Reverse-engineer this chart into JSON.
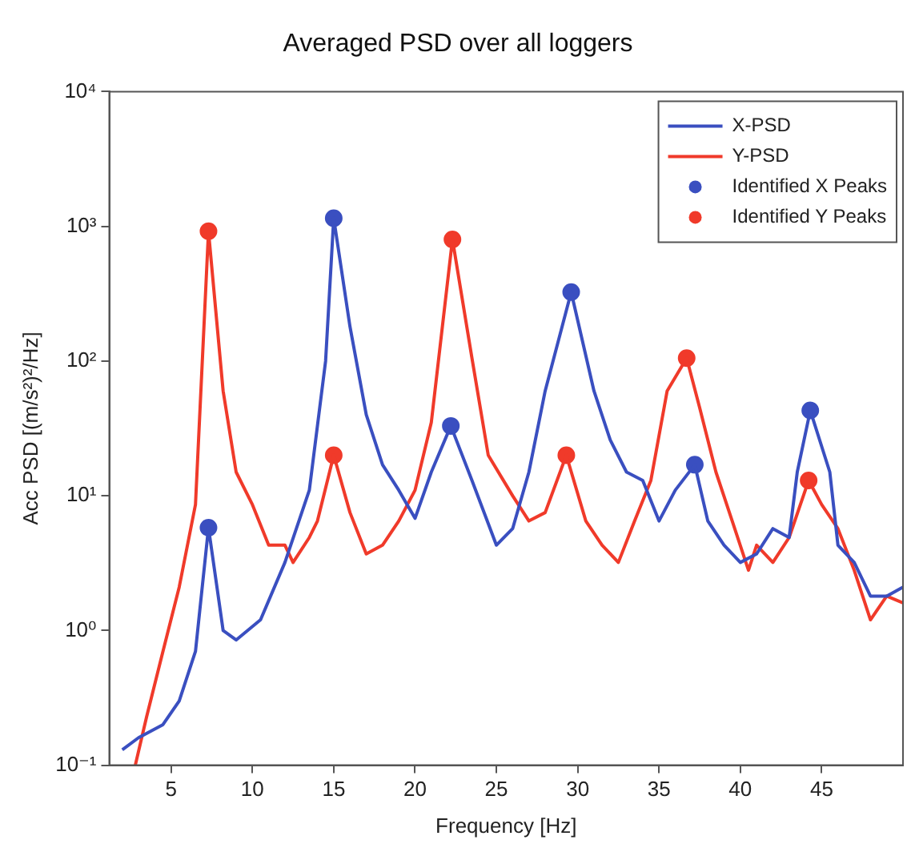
{
  "chart_data": {
    "type": "line",
    "title": "Averaged PSD over all loggers",
    "xlabel": "Frequency [Hz]",
    "ylabel": "Acc PSD [(m/s²)²/Hz]",
    "xlim": [
      1.2,
      50
    ],
    "xticks": [
      5,
      10,
      15,
      20,
      25,
      30,
      35,
      40,
      45
    ],
    "ylim": [
      0.1,
      10000
    ],
    "yticks": [
      {
        "value": 0.1,
        "label": "10⁻¹"
      },
      {
        "value": 1,
        "label": "10⁰"
      },
      {
        "value": 10,
        "label": "10¹"
      },
      {
        "value": 100,
        "label": "10²"
      },
      {
        "value": 1000,
        "label": "10³"
      },
      {
        "value": 10000,
        "label": "10⁴"
      }
    ],
    "log": "y",
    "grid": false,
    "legend": "top right",
    "series": [
      {
        "name": "X-PSD",
        "color": "#3a4fc0",
        "x": [
          2,
          3,
          4.5,
          5.5,
          6.5,
          7.3,
          8.2,
          9,
          10.5,
          12,
          13.5,
          14.5,
          15,
          16,
          17,
          18,
          19,
          20,
          21,
          22.2,
          23.5,
          25,
          26,
          27,
          28,
          29.6,
          31,
          32,
          33,
          34,
          35,
          36,
          37.2,
          38,
          39,
          40,
          41,
          42,
          43,
          43.5,
          44.3,
          45.5,
          46,
          47,
          48,
          49,
          50
        ],
        "values": [
          0.13,
          0.16,
          0.2,
          0.3,
          0.7,
          5.8,
          1.0,
          0.85,
          1.2,
          3.2,
          11,
          100,
          1150,
          180,
          40,
          17,
          11,
          6.8,
          15,
          33,
          13,
          4.3,
          5.7,
          15,
          60,
          325,
          60,
          26,
          15,
          13,
          6.5,
          11,
          17,
          6.5,
          4.3,
          3.2,
          3.7,
          5.7,
          4.9,
          15,
          43,
          15,
          4.3,
          3.2,
          1.8,
          1.8,
          2.1
        ]
      },
      {
        "name": "Y-PSD",
        "color": "#f03a2a",
        "x": [
          2.8,
          3.5,
          4.5,
          5.5,
          6.5,
          7.3,
          8.2,
          9,
          10,
          11,
          12,
          12.5,
          13.5,
          14,
          15,
          16,
          17,
          18,
          19,
          20,
          21,
          22.3,
          23.5,
          24.5,
          26,
          27,
          28,
          29.3,
          30.5,
          31.5,
          32.5,
          33.5,
          34.5,
          35.5,
          36.7,
          37.5,
          38.5,
          39.5,
          40.5,
          41,
          42,
          43,
          44.2,
          45,
          46,
          47,
          48,
          49,
          50
        ],
        "values": [
          0.1,
          0.23,
          0.7,
          2.1,
          8.6,
          920,
          60,
          15,
          8.6,
          4.3,
          4.3,
          3.2,
          4.9,
          6.5,
          20,
          7.5,
          3.7,
          4.3,
          6.5,
          11,
          35,
          800,
          105,
          20,
          10,
          6.5,
          7.5,
          20,
          6.5,
          4.3,
          3.2,
          6.5,
          13,
          60,
          105,
          45,
          15,
          6.5,
          2.8,
          4.3,
          3.2,
          4.9,
          13,
          8.6,
          5.7,
          2.8,
          1.2,
          1.8,
          1.6
        ]
      },
      {
        "name": "Identified X Peaks",
        "type": "scatter",
        "marker": "circle",
        "color": "#3a4fc0",
        "x": [
          7.3,
          15,
          22.2,
          29.6,
          37.2,
          44.3
        ],
        "values": [
          5.8,
          1150,
          33,
          325,
          17,
          43
        ]
      },
      {
        "name": "Identified Y Peaks",
        "type": "scatter",
        "marker": "circle",
        "color": "#f03a2a",
        "x": [
          7.3,
          15,
          22.3,
          29.3,
          36.7,
          44.2
        ],
        "values": [
          920,
          20,
          800,
          20,
          105,
          13
        ]
      }
    ]
  }
}
